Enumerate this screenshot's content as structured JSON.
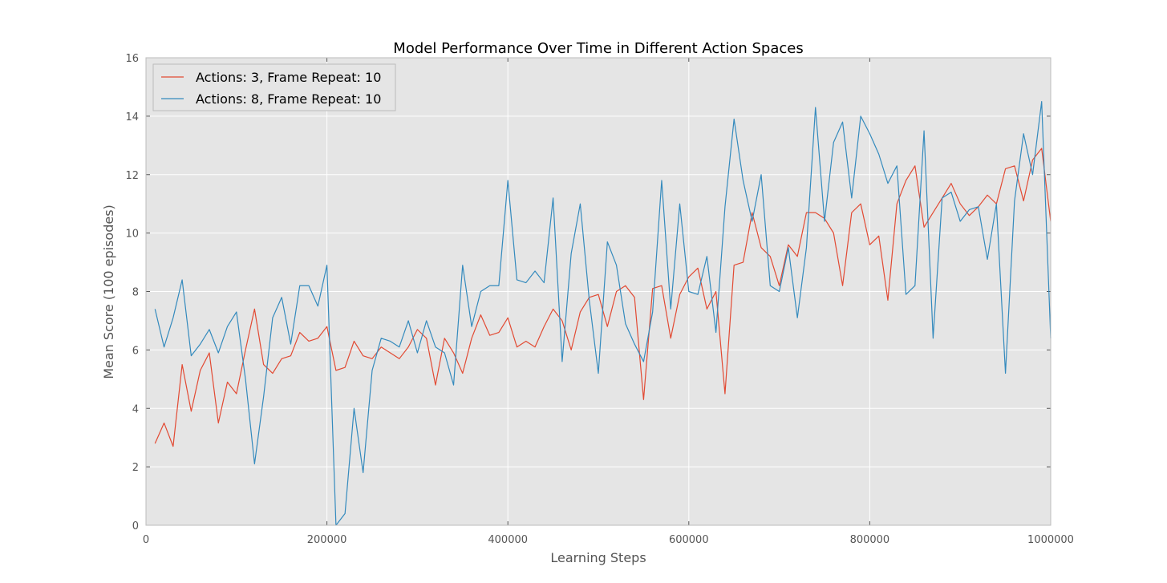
{
  "chart_data": {
    "type": "line",
    "title": "Model Performance Over Time in Different Action Spaces",
    "xlabel": "Learning Steps",
    "ylabel": "Mean Score (100 episodes)",
    "xlim": [
      0,
      1000000
    ],
    "ylim": [
      0,
      16
    ],
    "xticks": [
      0,
      200000,
      400000,
      600000,
      800000,
      1000000
    ],
    "yticks": [
      0,
      2,
      4,
      6,
      8,
      10,
      12,
      14,
      16
    ],
    "grid": true,
    "legend_position": "top-left",
    "background": "#e5e5e5",
    "x": [
      10000,
      20000,
      30000,
      40000,
      50000,
      60000,
      70000,
      80000,
      90000,
      100000,
      110000,
      120000,
      130000,
      140000,
      150000,
      160000,
      170000,
      180000,
      190000,
      200000,
      210000,
      220000,
      230000,
      240000,
      250000,
      260000,
      270000,
      280000,
      290000,
      300000,
      310000,
      320000,
      330000,
      340000,
      350000,
      360000,
      370000,
      380000,
      390000,
      400000,
      410000,
      420000,
      430000,
      440000,
      450000,
      460000,
      470000,
      480000,
      490000,
      500000,
      510000,
      520000,
      530000,
      540000,
      550000,
      560000,
      570000,
      580000,
      590000,
      600000,
      610000,
      620000,
      630000,
      640000,
      650000,
      660000,
      670000,
      680000,
      690000,
      700000,
      710000,
      720000,
      730000,
      740000,
      750000,
      760000,
      770000,
      780000,
      790000,
      800000,
      810000,
      820000,
      830000,
      840000,
      850000,
      860000,
      870000,
      880000,
      890000,
      900000,
      910000,
      920000,
      930000,
      940000,
      950000,
      960000,
      970000,
      980000,
      990000,
      1000000
    ],
    "series": [
      {
        "name": "Actions: 3, Frame Repeat: 10",
        "color": "#e24a33",
        "values": [
          2.8,
          3.5,
          2.7,
          5.5,
          3.9,
          5.3,
          5.9,
          3.5,
          4.9,
          4.5,
          6.0,
          7.4,
          5.5,
          5.2,
          5.7,
          5.8,
          6.6,
          6.3,
          6.4,
          6.8,
          5.3,
          5.4,
          6.3,
          5.8,
          5.7,
          6.1,
          5.9,
          5.7,
          6.1,
          6.7,
          6.4,
          4.8,
          6.4,
          5.9,
          5.2,
          6.4,
          7.2,
          6.5,
          6.6,
          7.1,
          6.1,
          6.3,
          6.1,
          6.8,
          7.4,
          7.0,
          6.0,
          7.3,
          7.8,
          7.9,
          6.8,
          8.0,
          8.2,
          7.8,
          4.3,
          8.1,
          8.2,
          6.4,
          7.9,
          8.5,
          8.8,
          7.4,
          8.0,
          4.5,
          8.9,
          9.0,
          10.7,
          9.5,
          9.2,
          8.2,
          9.6,
          9.2,
          10.7,
          10.7,
          10.5,
          10.0,
          8.2,
          10.7,
          11.0,
          9.6,
          9.9,
          7.7,
          11.0,
          11.8,
          12.3,
          10.2,
          10.7,
          11.2,
          11.7,
          11.0,
          10.6,
          10.9,
          11.3,
          11.0,
          12.2,
          12.3,
          11.1,
          12.5,
          12.9,
          10.4
        ]
      },
      {
        "name": "Actions: 8, Frame Repeat: 10",
        "color": "#348abd",
        "values": [
          7.4,
          6.1,
          7.1,
          8.4,
          5.8,
          6.2,
          6.7,
          5.9,
          6.8,
          7.3,
          5.0,
          2.1,
          4.4,
          7.1,
          7.8,
          6.2,
          8.2,
          8.2,
          7.5,
          8.9,
          0.0,
          0.4,
          4.0,
          1.8,
          5.3,
          6.4,
          6.3,
          6.1,
          7.0,
          5.9,
          7.0,
          6.1,
          5.9,
          4.8,
          8.9,
          6.8,
          8.0,
          8.2,
          8.2,
          11.8,
          8.4,
          8.3,
          8.7,
          8.3,
          11.2,
          5.6,
          9.3,
          11.0,
          7.7,
          5.2,
          9.7,
          8.9,
          6.9,
          6.2,
          5.6,
          7.3,
          11.8,
          7.4,
          11.0,
          8.0,
          7.9,
          9.2,
          6.6,
          10.9,
          13.9,
          11.8,
          10.4,
          12.0,
          8.2,
          8.0,
          9.5,
          7.1,
          9.5,
          14.3,
          10.4,
          13.1,
          13.8,
          11.2,
          14.0,
          13.4,
          12.7,
          11.7,
          12.3,
          7.9,
          8.2,
          13.5,
          6.4,
          11.2,
          11.4,
          10.4,
          10.8,
          10.9,
          9.1,
          11.0,
          5.2,
          11.1,
          13.4,
          12.0,
          14.5,
          6.4
        ]
      }
    ]
  }
}
